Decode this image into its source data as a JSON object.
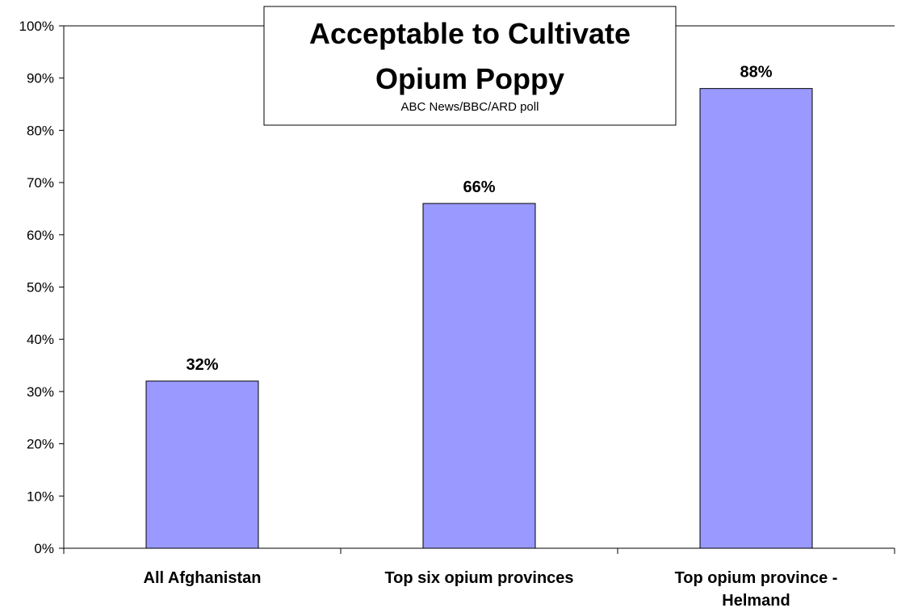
{
  "chart_data": {
    "type": "bar",
    "title": "Acceptable to Cultivate Opium Poppy",
    "title_lines": [
      "Acceptable to Cultivate",
      "Opium Poppy"
    ],
    "subtitle": "ABC News/BBC/ARD poll",
    "categories": [
      "All Afghanistan",
      "Top six opium provinces",
      "Top opium province - Helmand"
    ],
    "category_lines": [
      [
        "All Afghanistan"
      ],
      [
        "Top six opium provinces"
      ],
      [
        "Top opium province -",
        "Helmand"
      ]
    ],
    "values": [
      32,
      66,
      88
    ],
    "data_labels": [
      "32%",
      "66%",
      "88%"
    ],
    "ylim": [
      0,
      100
    ],
    "yticks": [
      0,
      10,
      20,
      30,
      40,
      50,
      60,
      70,
      80,
      90,
      100
    ],
    "ytick_labels": [
      "0%",
      "10%",
      "20%",
      "30%",
      "40%",
      "50%",
      "60%",
      "70%",
      "80%",
      "90%",
      "100%"
    ],
    "xlabel": "",
    "ylabel": "",
    "grid": false,
    "legend": "none",
    "colors": {
      "bar_fill": "#9999ff",
      "bar_stroke": "#000000",
      "axis": "#000000"
    }
  }
}
